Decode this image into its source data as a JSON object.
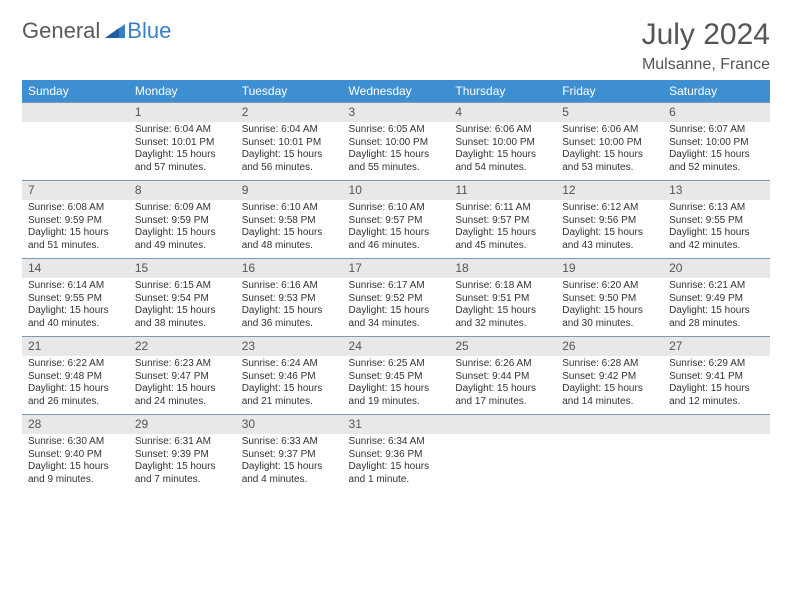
{
  "logo": {
    "word1": "General",
    "word2": "Blue"
  },
  "title": "July 2024",
  "location": "Mulsanne, France",
  "colors": {
    "header_bg": "#3d8fd1",
    "daynum_bg": "#e8e8e8",
    "rule": "#7a99b5",
    "text": "#333333",
    "title_text": "#555555",
    "logo_gray": "#5a5a5a",
    "logo_blue": "#3a7fc4"
  },
  "day_headers": [
    "Sunday",
    "Monday",
    "Tuesday",
    "Wednesday",
    "Thursday",
    "Friday",
    "Saturday"
  ],
  "weeks": [
    {
      "nums": [
        "",
        "1",
        "2",
        "3",
        "4",
        "5",
        "6"
      ],
      "cells": [
        null,
        {
          "sr": "Sunrise: 6:04 AM",
          "ss": "Sunset: 10:01 PM",
          "dl": "Daylight: 15 hours and 57 minutes."
        },
        {
          "sr": "Sunrise: 6:04 AM",
          "ss": "Sunset: 10:01 PM",
          "dl": "Daylight: 15 hours and 56 minutes."
        },
        {
          "sr": "Sunrise: 6:05 AM",
          "ss": "Sunset: 10:00 PM",
          "dl": "Daylight: 15 hours and 55 minutes."
        },
        {
          "sr": "Sunrise: 6:06 AM",
          "ss": "Sunset: 10:00 PM",
          "dl": "Daylight: 15 hours and 54 minutes."
        },
        {
          "sr": "Sunrise: 6:06 AM",
          "ss": "Sunset: 10:00 PM",
          "dl": "Daylight: 15 hours and 53 minutes."
        },
        {
          "sr": "Sunrise: 6:07 AM",
          "ss": "Sunset: 10:00 PM",
          "dl": "Daylight: 15 hours and 52 minutes."
        }
      ]
    },
    {
      "nums": [
        "7",
        "8",
        "9",
        "10",
        "11",
        "12",
        "13"
      ],
      "cells": [
        {
          "sr": "Sunrise: 6:08 AM",
          "ss": "Sunset: 9:59 PM",
          "dl": "Daylight: 15 hours and 51 minutes."
        },
        {
          "sr": "Sunrise: 6:09 AM",
          "ss": "Sunset: 9:59 PM",
          "dl": "Daylight: 15 hours and 49 minutes."
        },
        {
          "sr": "Sunrise: 6:10 AM",
          "ss": "Sunset: 9:58 PM",
          "dl": "Daylight: 15 hours and 48 minutes."
        },
        {
          "sr": "Sunrise: 6:10 AM",
          "ss": "Sunset: 9:57 PM",
          "dl": "Daylight: 15 hours and 46 minutes."
        },
        {
          "sr": "Sunrise: 6:11 AM",
          "ss": "Sunset: 9:57 PM",
          "dl": "Daylight: 15 hours and 45 minutes."
        },
        {
          "sr": "Sunrise: 6:12 AM",
          "ss": "Sunset: 9:56 PM",
          "dl": "Daylight: 15 hours and 43 minutes."
        },
        {
          "sr": "Sunrise: 6:13 AM",
          "ss": "Sunset: 9:55 PM",
          "dl": "Daylight: 15 hours and 42 minutes."
        }
      ]
    },
    {
      "nums": [
        "14",
        "15",
        "16",
        "17",
        "18",
        "19",
        "20"
      ],
      "cells": [
        {
          "sr": "Sunrise: 6:14 AM",
          "ss": "Sunset: 9:55 PM",
          "dl": "Daylight: 15 hours and 40 minutes."
        },
        {
          "sr": "Sunrise: 6:15 AM",
          "ss": "Sunset: 9:54 PM",
          "dl": "Daylight: 15 hours and 38 minutes."
        },
        {
          "sr": "Sunrise: 6:16 AM",
          "ss": "Sunset: 9:53 PM",
          "dl": "Daylight: 15 hours and 36 minutes."
        },
        {
          "sr": "Sunrise: 6:17 AM",
          "ss": "Sunset: 9:52 PM",
          "dl": "Daylight: 15 hours and 34 minutes."
        },
        {
          "sr": "Sunrise: 6:18 AM",
          "ss": "Sunset: 9:51 PM",
          "dl": "Daylight: 15 hours and 32 minutes."
        },
        {
          "sr": "Sunrise: 6:20 AM",
          "ss": "Sunset: 9:50 PM",
          "dl": "Daylight: 15 hours and 30 minutes."
        },
        {
          "sr": "Sunrise: 6:21 AM",
          "ss": "Sunset: 9:49 PM",
          "dl": "Daylight: 15 hours and 28 minutes."
        }
      ]
    },
    {
      "nums": [
        "21",
        "22",
        "23",
        "24",
        "25",
        "26",
        "27"
      ],
      "cells": [
        {
          "sr": "Sunrise: 6:22 AM",
          "ss": "Sunset: 9:48 PM",
          "dl": "Daylight: 15 hours and 26 minutes."
        },
        {
          "sr": "Sunrise: 6:23 AM",
          "ss": "Sunset: 9:47 PM",
          "dl": "Daylight: 15 hours and 24 minutes."
        },
        {
          "sr": "Sunrise: 6:24 AM",
          "ss": "Sunset: 9:46 PM",
          "dl": "Daylight: 15 hours and 21 minutes."
        },
        {
          "sr": "Sunrise: 6:25 AM",
          "ss": "Sunset: 9:45 PM",
          "dl": "Daylight: 15 hours and 19 minutes."
        },
        {
          "sr": "Sunrise: 6:26 AM",
          "ss": "Sunset: 9:44 PM",
          "dl": "Daylight: 15 hours and 17 minutes."
        },
        {
          "sr": "Sunrise: 6:28 AM",
          "ss": "Sunset: 9:42 PM",
          "dl": "Daylight: 15 hours and 14 minutes."
        },
        {
          "sr": "Sunrise: 6:29 AM",
          "ss": "Sunset: 9:41 PM",
          "dl": "Daylight: 15 hours and 12 minutes."
        }
      ]
    },
    {
      "nums": [
        "28",
        "29",
        "30",
        "31",
        "",
        "",
        ""
      ],
      "cells": [
        {
          "sr": "Sunrise: 6:30 AM",
          "ss": "Sunset: 9:40 PM",
          "dl": "Daylight: 15 hours and 9 minutes."
        },
        {
          "sr": "Sunrise: 6:31 AM",
          "ss": "Sunset: 9:39 PM",
          "dl": "Daylight: 15 hours and 7 minutes."
        },
        {
          "sr": "Sunrise: 6:33 AM",
          "ss": "Sunset: 9:37 PM",
          "dl": "Daylight: 15 hours and 4 minutes."
        },
        {
          "sr": "Sunrise: 6:34 AM",
          "ss": "Sunset: 9:36 PM",
          "dl": "Daylight: 15 hours and 1 minute."
        },
        null,
        null,
        null
      ]
    }
  ]
}
